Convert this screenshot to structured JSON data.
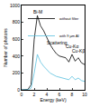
{
  "chart_data": {
    "type": "line",
    "x_label": "Energy (keV)",
    "y_label": "Number of photons",
    "x": [
      0,
      0.5,
      1,
      1.5,
      2,
      2.5,
      3,
      3.5,
      4,
      4.5,
      5,
      5.5,
      6,
      6.5,
      7,
      7.5,
      8,
      8.5,
      9,
      9.5,
      10
    ],
    "series": [
      {
        "name": "without filter",
        "color": "#000000",
        "values": [
          0,
          0,
          5,
          60,
          600,
          880,
          760,
          700,
          620,
          540,
          480,
          430,
          400,
          390,
          380,
          330,
          420,
          340,
          380,
          320,
          300
        ]
      },
      {
        "name": "with 9 µm Al",
        "color": "#5bc0de",
        "values": [
          0,
          0,
          2,
          20,
          200,
          420,
          330,
          280,
          240,
          200,
          180,
          160,
          150,
          140,
          130,
          120,
          160,
          120,
          140,
          110,
          100
        ]
      }
    ],
    "annotations": [
      {
        "text": "Bi-M",
        "x": 2.6,
        "y": 930
      },
      {
        "text": "Scattering",
        "x": 5.6,
        "y": 560
      },
      {
        "text": "Cu-Kα",
        "x": 8.0,
        "y": 520
      },
      {
        "text": "Cu-Kβ",
        "x": 9.0,
        "y": 460
      }
    ],
    "xlim": [
      0,
      10
    ],
    "xticks": [
      0,
      2,
      4,
      6,
      8,
      10
    ],
    "ylim": [
      0,
      1000
    ],
    "yticks": [
      0,
      200,
      400,
      600,
      800,
      1000
    ],
    "grid": false,
    "legend": "top right"
  }
}
